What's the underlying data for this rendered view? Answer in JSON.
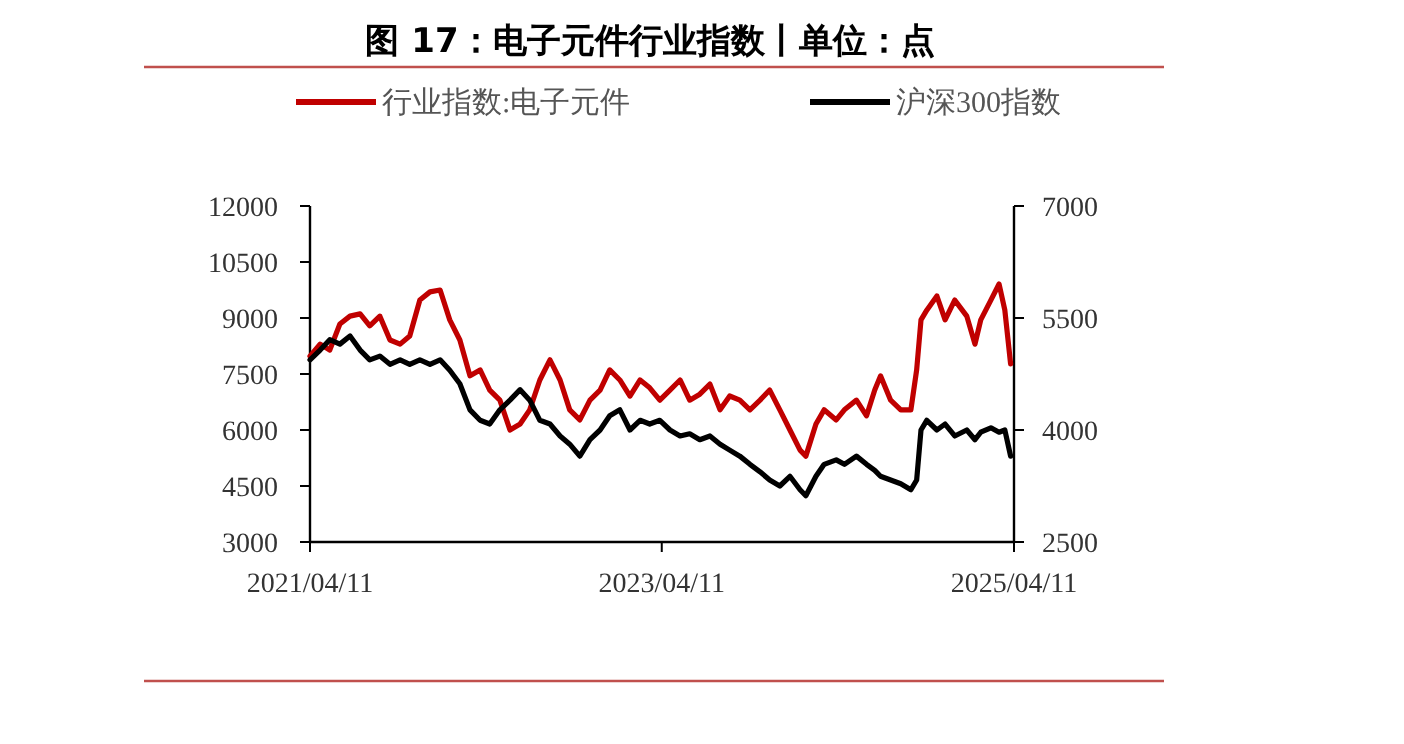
{
  "chart_data": {
    "type": "line",
    "title": "图 17：电子元件行业指数丨单位：点",
    "legend": "top",
    "grid": false,
    "marker": "none",
    "line_style": "solid",
    "x": [
      "2021-04-11",
      "2021-05-02",
      "2021-05-22",
      "2021-06-12",
      "2021-07-03",
      "2021-07-24",
      "2021-08-13",
      "2021-09-03",
      "2021-09-24",
      "2021-10-15",
      "2021-11-04",
      "2021-11-25",
      "2021-12-16",
      "2022-01-06",
      "2022-01-26",
      "2022-02-16",
      "2022-03-09",
      "2022-03-30",
      "2022-04-19",
      "2022-05-10",
      "2022-05-31",
      "2022-06-21",
      "2022-07-11",
      "2022-08-01",
      "2022-08-22",
      "2022-09-12",
      "2022-10-02",
      "2022-10-23",
      "2022-11-13",
      "2022-12-04",
      "2022-12-24",
      "2023-01-14",
      "2023-02-04",
      "2023-02-25",
      "2023-03-17",
      "2023-04-07",
      "2023-04-28",
      "2023-05-19",
      "2023-06-08",
      "2023-06-29",
      "2023-07-20",
      "2023-08-10",
      "2023-08-30",
      "2023-09-20",
      "2023-10-11",
      "2023-11-01",
      "2023-11-21",
      "2023-12-12",
      "2024-01-02",
      "2024-01-23",
      "2024-02-04",
      "2024-02-25",
      "2024-03-13",
      "2024-04-07",
      "2024-04-24",
      "2024-05-19",
      "2024-06-09",
      "2024-06-26",
      "2024-07-08",
      "2024-07-29",
      "2024-08-19",
      "2024-09-09",
      "2024-09-21",
      "2024-09-30",
      "2024-10-12",
      "2024-11-02",
      "2024-11-19",
      "2024-12-09",
      "2025-01-03",
      "2025-01-20",
      "2025-02-01",
      "2025-02-22",
      "2025-03-11",
      "2025-03-23",
      "2025-04-04"
    ],
    "series": [
      {
        "name": "行业指数:电子元件",
        "color": "#c00000",
        "values": [
          7980,
          8300,
          8140,
          8840,
          9050,
          9110,
          8790,
          9050,
          8410,
          8300,
          8520,
          9480,
          9700,
          9750,
          8950,
          8410,
          7450,
          7610,
          7070,
          6800,
          6000,
          6160,
          6540,
          7340,
          7880,
          7340,
          6540,
          6270,
          6800,
          7070,
          7610,
          7340,
          6910,
          7340,
          7130,
          6800,
          7070,
          7340,
          6800,
          6960,
          7230,
          6540,
          6910,
          6800,
          6540,
          6800,
          7070,
          6540,
          6000,
          5460,
          5300,
          6160,
          6540,
          6270,
          6540,
          6800,
          6380,
          7070,
          7450,
          6800,
          6540,
          6540,
          7610,
          8950,
          9210,
          9590,
          8950,
          9480,
          9050,
          8300,
          8950,
          9480,
          9910,
          9210,
          7770
        ]
      },
      {
        "name": "沪深300指数",
        "color": "#000000",
        "axis": "y2",
        "values": [
          4940,
          5070,
          5210,
          5150,
          5260,
          5070,
          4940,
          4990,
          4880,
          4940,
          4880,
          4940,
          4880,
          4940,
          4800,
          4620,
          4270,
          4130,
          4080,
          4270,
          4400,
          4540,
          4400,
          4130,
          4080,
          3920,
          3810,
          3650,
          3870,
          4000,
          4190,
          4270,
          4000,
          4130,
          4080,
          4130,
          4000,
          3920,
          3950,
          3870,
          3920,
          3810,
          3730,
          3650,
          3540,
          3440,
          3330,
          3250,
          3380,
          3200,
          3120,
          3380,
          3540,
          3600,
          3540,
          3650,
          3540,
          3460,
          3380,
          3330,
          3280,
          3200,
          3330,
          4000,
          4130,
          4000,
          4080,
          3920,
          4000,
          3870,
          3970,
          4030,
          3970,
          4000,
          3650
        ]
      }
    ],
    "xlim": [
      "2021-04-11",
      "2025-04-11"
    ],
    "xticks": [
      {
        "value": "2021-04-11",
        "label": "2021/04/11"
      },
      {
        "value": "2023-04-11",
        "label": "2023/04/11"
      },
      {
        "value": "2025-04-11",
        "label": "2025/04/11"
      }
    ],
    "ylim": [
      3000,
      12000
    ],
    "yticks": [
      3000,
      4500,
      6000,
      7500,
      9000,
      10500,
      12000
    ],
    "y2lim": [
      2500,
      7000
    ],
    "y2ticks": [
      2500,
      4000,
      5500,
      7000
    ]
  }
}
